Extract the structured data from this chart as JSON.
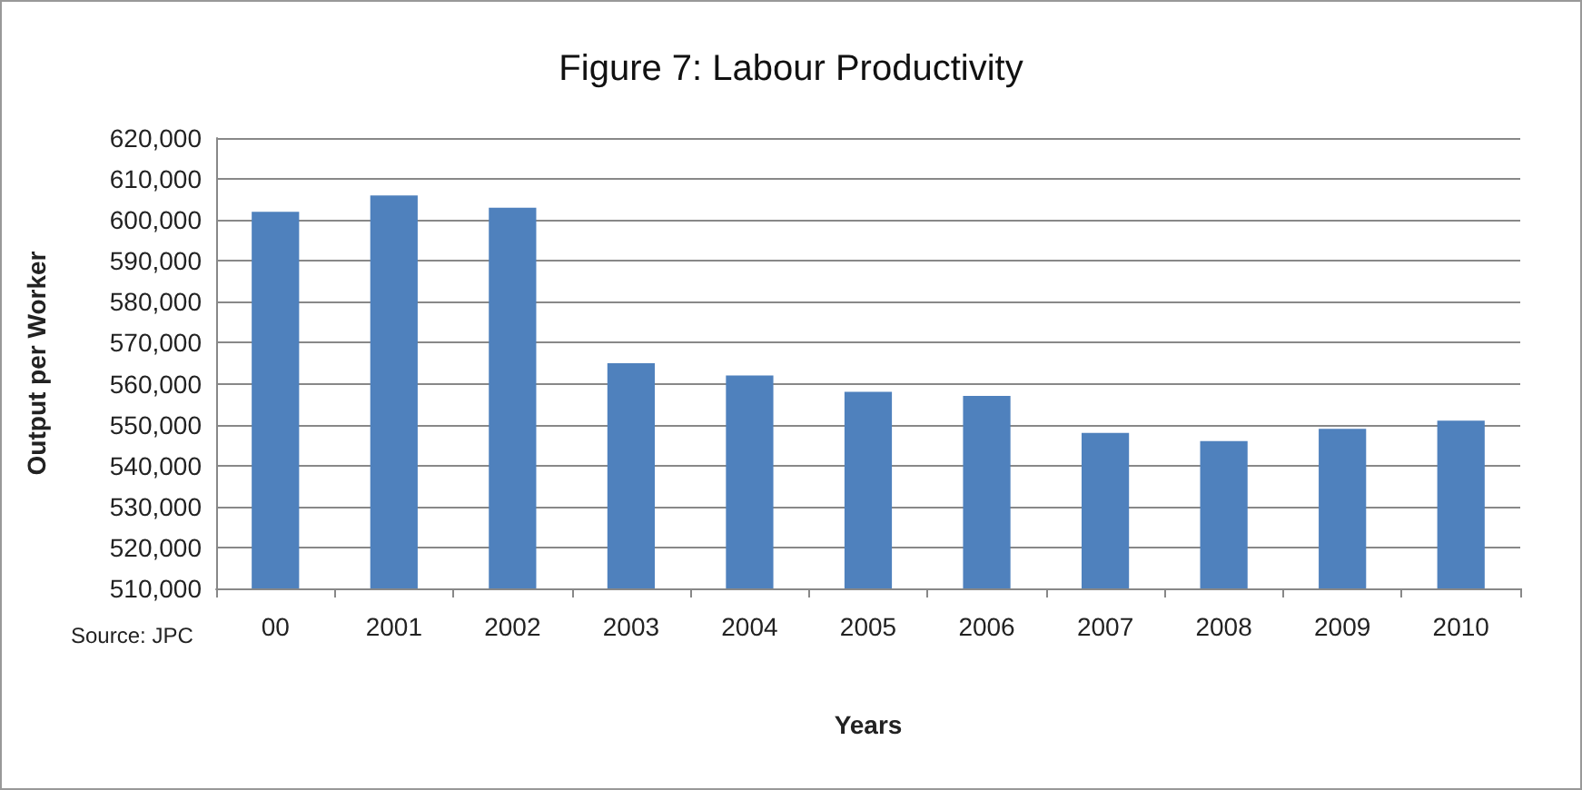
{
  "chart_data": {
    "type": "bar",
    "title": "Figure 7: Labour Productivity",
    "xlabel": "Years",
    "ylabel": "Output per Worker",
    "annotations": [
      "Source: JPC"
    ],
    "categories": [
      "00",
      "2001",
      "2002",
      "2003",
      "2004",
      "2005",
      "2006",
      "2007",
      "2008",
      "2009",
      "2010"
    ],
    "values": [
      602000,
      606000,
      603000,
      565000,
      562000,
      558000,
      557000,
      548000,
      546000,
      549000,
      551000
    ],
    "color": "#4f81bd",
    "ylim": [
      510000,
      620000
    ],
    "yticks": [
      {
        "value": 510000,
        "label": "510,000"
      },
      {
        "value": 520000,
        "label": "520,000"
      },
      {
        "value": 530000,
        "label": "530,000"
      },
      {
        "value": 540000,
        "label": "540,000"
      },
      {
        "value": 550000,
        "label": "550,000"
      },
      {
        "value": 560000,
        "label": "560,000"
      },
      {
        "value": 570000,
        "label": "570,000"
      },
      {
        "value": 580000,
        "label": "580,000"
      },
      {
        "value": 590000,
        "label": "590,000"
      },
      {
        "value": 600000,
        "label": "600,000"
      },
      {
        "value": 610000,
        "label": "610,000"
      },
      {
        "value": 620000,
        "label": "620,000"
      }
    ],
    "grid": "y"
  }
}
